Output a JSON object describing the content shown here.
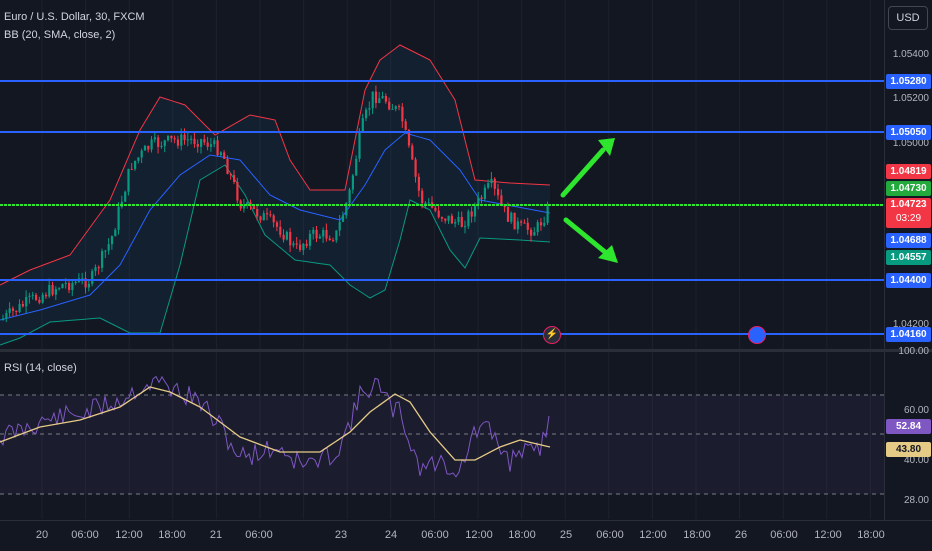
{
  "header": {
    "symbol_title": "Euro / U.S. Dollar, 30, FXCM",
    "bb_indicator": "BB (20, SMA, close, 2)",
    "rsi_indicator": "RSI (14, close)",
    "currency_button": "USD"
  },
  "price_scale": {
    "ticks": [
      "1.05400",
      "1.05200",
      "1.05000",
      "1.04200"
    ],
    "tags": {
      "line_1": "1.05280",
      "line_2": "1.05050",
      "bb_upper": "1.04819",
      "bb_basis": "1.04730",
      "last_price": "1.04723",
      "countdown": "03:29",
      "line_3": "1.04688",
      "bb_lower": "1.04557",
      "line_4": "1.04400",
      "line_5": "1.04160"
    }
  },
  "rsi_scale": {
    "ticks": [
      "100.00",
      "60.00",
      "40.00",
      "28.00"
    ],
    "tags": {
      "rsi": "52.84",
      "rsi_ma": "43.80"
    }
  },
  "time_axis": {
    "labels": [
      "20",
      "06:00",
      "12:00",
      "18:00",
      "21",
      "06:00",
      "23",
      "24",
      "06:00",
      "12:00",
      "18:00",
      "25",
      "06:00",
      "12:00",
      "18:00",
      "26",
      "06:00",
      "12:00",
      "18:00"
    ]
  },
  "event_icons": [
    "lightning-icon",
    "economic-event-icon"
  ],
  "colors": {
    "background": "#131722",
    "horizontal_lines": "#2962ff",
    "current_price_line": "#2ee62e",
    "bb_upper": "#f23645",
    "bb_basis": "#2962ff",
    "bb_lower": "#089981",
    "candle_up": "#089981",
    "candle_down": "#f23645",
    "rsi_line": "#7e57c2",
    "rsi_ma": "#e6cb87",
    "arrows": "#2ee62e"
  }
}
